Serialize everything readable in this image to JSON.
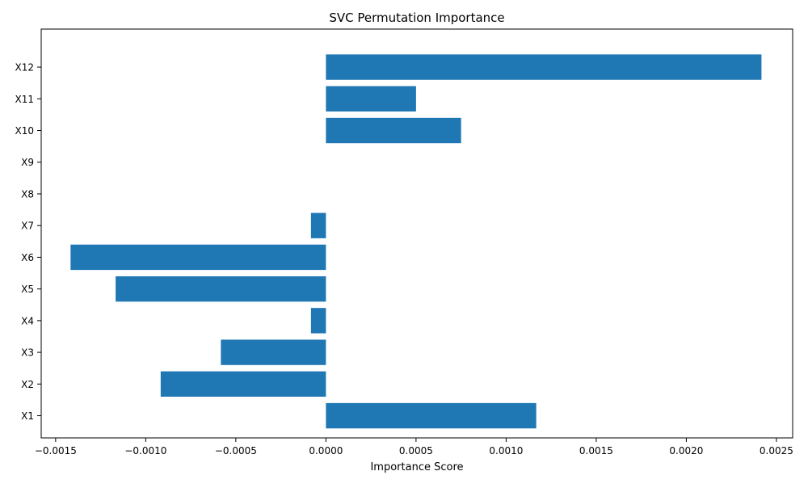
{
  "chart_data": {
    "type": "bar",
    "orientation": "horizontal",
    "title": "SVC Permutation Importance",
    "xlabel": "Importance Score",
    "ylabel": "",
    "categories": [
      "X1",
      "X2",
      "X3",
      "X4",
      "X5",
      "X6",
      "X7",
      "X8",
      "X9",
      "X10",
      "X11",
      "X12"
    ],
    "values": [
      0.001167,
      -0.000917,
      -0.000583,
      -8.3e-05,
      -0.001167,
      -0.001417,
      -8.3e-05,
      0.0,
      0.0,
      0.00075,
      0.0005,
      0.002417
    ],
    "xlim": [
      -0.00158,
      0.00259
    ],
    "xticks": [
      -0.0015,
      -0.001,
      -0.0005,
      0.0,
      0.0005,
      0.001,
      0.0015,
      0.002,
      0.0025
    ],
    "xtick_labels": [
      "−0.0015",
      "−0.0010",
      "−0.0005",
      "0.0000",
      "0.0005",
      "0.0010",
      "0.0015",
      "0.0020",
      "0.0025"
    ],
    "grid": false,
    "legend": "none",
    "bar_color": "#1f77b4"
  }
}
